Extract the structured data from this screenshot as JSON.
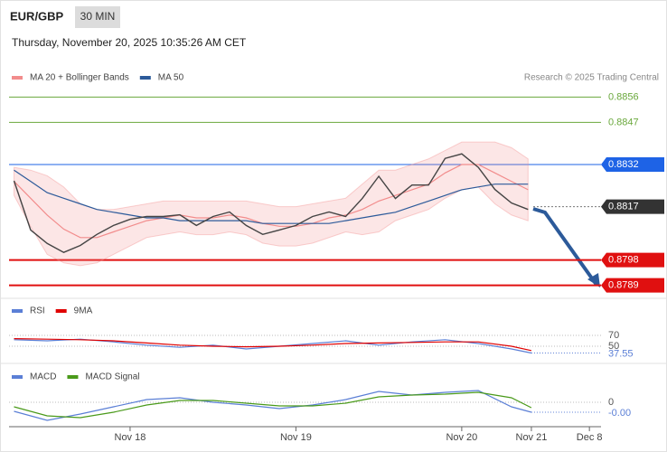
{
  "header": {
    "symbol": "EUR/GBP",
    "interval": "30 MIN",
    "timestamp": "Thursday, November 20, 2025 10:35:26 AM CET",
    "credit": "Research © 2025 Trading Central"
  },
  "chart_data": [
    {
      "type": "line",
      "color": "#444444",
      "x": [
        17.3,
        17.4,
        17.5,
        17.6,
        17.7,
        17.8,
        17.9,
        18.0,
        18.1,
        18.2,
        18.3,
        18.4,
        18.5,
        18.6,
        18.7,
        18.8,
        18.9,
        19.0,
        19.1,
        19.2,
        19.3,
        19.4,
        19.5,
        19.6,
        19.7,
        19.8,
        19.9,
        20.0,
        20.1,
        20.2,
        20.3,
        20.4
      ],
      "values": [
        0.88262,
        0.88087,
        0.88039,
        0.88007,
        0.88032,
        0.88071,
        0.88103,
        0.88125,
        0.88135,
        0.88135,
        0.88141,
        0.88103,
        0.88135,
        0.88151,
        0.88103,
        0.88071,
        0.88087,
        0.88103,
        0.88135,
        0.88151,
        0.88135,
        0.88199,
        0.88278,
        0.88199,
        0.88247,
        0.88247,
        0.88342,
        0.88358,
        0.8831,
        0.88231,
        0.88183,
        0.8816
      ],
      "series": [
        {
          "name": "MA 20 + Bollinger Bands",
          "color": "#f28c8c",
          "values": [
            0.8826,
            0.882,
            0.8814,
            0.8809,
            0.8806,
            0.8806,
            0.8808,
            0.881,
            0.8812,
            0.8813,
            0.8814,
            0.8813,
            0.8813,
            0.8814,
            0.8813,
            0.8811,
            0.881,
            0.881,
            0.8811,
            0.8813,
            0.8814,
            0.8816,
            0.8819,
            0.8821,
            0.8823,
            0.8825,
            0.8829,
            0.8832,
            0.8832,
            0.8829,
            0.8826,
            0.8823
          ],
          "upper": [
            0.8831,
            0.883,
            0.8828,
            0.8824,
            0.8818,
            0.8816,
            0.8816,
            0.8817,
            0.8818,
            0.8819,
            0.8819,
            0.8819,
            0.8819,
            0.8819,
            0.8819,
            0.8818,
            0.8817,
            0.8817,
            0.8818,
            0.8819,
            0.882,
            0.8825,
            0.883,
            0.883,
            0.8832,
            0.8834,
            0.8837,
            0.884,
            0.884,
            0.884,
            0.8838,
            0.8834
          ],
          "lower": [
            0.8821,
            0.881,
            0.88,
            0.8797,
            0.8796,
            0.8797,
            0.88,
            0.8803,
            0.8806,
            0.8807,
            0.8808,
            0.8807,
            0.8807,
            0.8808,
            0.8807,
            0.8804,
            0.8803,
            0.8803,
            0.8804,
            0.8806,
            0.8808,
            0.8807,
            0.8808,
            0.8812,
            0.8814,
            0.8816,
            0.882,
            0.8823,
            0.8824,
            0.8818,
            0.8814,
            0.8812
          ]
        },
        {
          "name": "MA 50",
          "color": "#2c5a9a",
          "values": [
            0.883,
            0.8826,
            0.8822,
            0.882,
            0.8818,
            0.8816,
            0.8815,
            0.8814,
            0.8813,
            0.8813,
            0.8812,
            0.8812,
            0.8812,
            0.8812,
            0.8812,
            0.8811,
            0.8811,
            0.8811,
            0.8811,
            0.8811,
            0.8812,
            0.8813,
            0.8814,
            0.8815,
            0.8817,
            0.8819,
            0.8821,
            0.8823,
            0.8824,
            0.8825,
            0.8825,
            0.8825
          ]
        }
      ],
      "levels": [
        {
          "value": 0.8856,
          "color": "#6aa83c",
          "box": false,
          "dashed": false
        },
        {
          "value": 0.8847,
          "color": "#6aa83c",
          "box": false,
          "dashed": false
        },
        {
          "value": 0.8832,
          "color": "#1e63e6",
          "box": true,
          "dashed": false
        },
        {
          "value": 0.8817,
          "color": "#333333",
          "box": true,
          "dashed": true
        },
        {
          "value": 0.8798,
          "color": "#e01010",
          "box": true,
          "dashed": false
        },
        {
          "value": 0.8789,
          "color": "#e01010",
          "box": true,
          "dashed": false
        }
      ],
      "xlim": [
        17.27,
        20.84
      ],
      "ylim": [
        0.8785,
        0.886
      ]
    },
    {
      "type": "line",
      "x": [
        17.3,
        17.5,
        17.7,
        17.9,
        18.1,
        18.3,
        18.5,
        18.7,
        18.9,
        19.1,
        19.3,
        19.5,
        19.7,
        19.9,
        20.1,
        20.3,
        20.42
      ],
      "series": [
        {
          "name": "RSI",
          "color": "#5b7fd6",
          "values": [
            62,
            60,
            63,
            58,
            52,
            48,
            52,
            45,
            50,
            55,
            60,
            52,
            58,
            62,
            55,
            45,
            37.55
          ]
        },
        {
          "name": "9MA",
          "color": "#e00000",
          "values": [
            64,
            63,
            62,
            60,
            56,
            52,
            50,
            49,
            50,
            52,
            55,
            56,
            57,
            58,
            58,
            50,
            42
          ]
        }
      ],
      "xlim": [
        17.27,
        20.84
      ],
      "ylim": [
        25,
        105
      ],
      "yticks": [
        50,
        70
      ]
    },
    {
      "type": "line",
      "x": [
        17.3,
        17.5,
        17.7,
        17.9,
        18.1,
        18.3,
        18.5,
        18.7,
        18.9,
        19.1,
        19.3,
        19.5,
        19.7,
        19.9,
        20.1,
        20.3,
        20.42
      ],
      "series": [
        {
          "name": "MACD",
          "color": "#5b7fd6",
          "values": [
            -0.0001,
            -0.0002,
            -0.00013,
            -5e-05,
            3e-05,
            5e-05,
            0,
            -3e-05,
            -7e-05,
            -3e-05,
            3e-05,
            0.00012,
            8e-05,
            0.00011,
            0.00013,
            -5e-05,
            -0.00011
          ],
          "value_labels": [
            null,
            null,
            null,
            null,
            null,
            null,
            null,
            null,
            null,
            null,
            null,
            null,
            null,
            null,
            null,
            null,
            "-0.00"
          ]
        },
        {
          "name": "MACD Signal",
          "color": "#4a9a1a",
          "values": [
            -5e-05,
            -0.00015,
            -0.00017,
            -0.00011,
            -3e-05,
            2e-05,
            2e-05,
            -1e-05,
            -4e-05,
            -4e-05,
            -1e-05,
            6e-05,
            8e-05,
            9e-05,
            0.00011,
            5e-05,
            -6e-05
          ]
        }
      ],
      "xlim": [
        17.27,
        20.84
      ],
      "ylim": [
        -0.00025,
        0.00035
      ],
      "yticks": [
        0
      ],
      "xticks": [
        {
          "value": 18,
          "label": "Nov 18"
        },
        {
          "value": 19,
          "label": "Nov 19"
        },
        {
          "value": 20,
          "label": "Nov 20"
        },
        {
          "value": 20.42,
          "label": "Nov 21"
        },
        {
          "value": 20.77,
          "label": "Dec 8"
        }
      ]
    }
  ]
}
